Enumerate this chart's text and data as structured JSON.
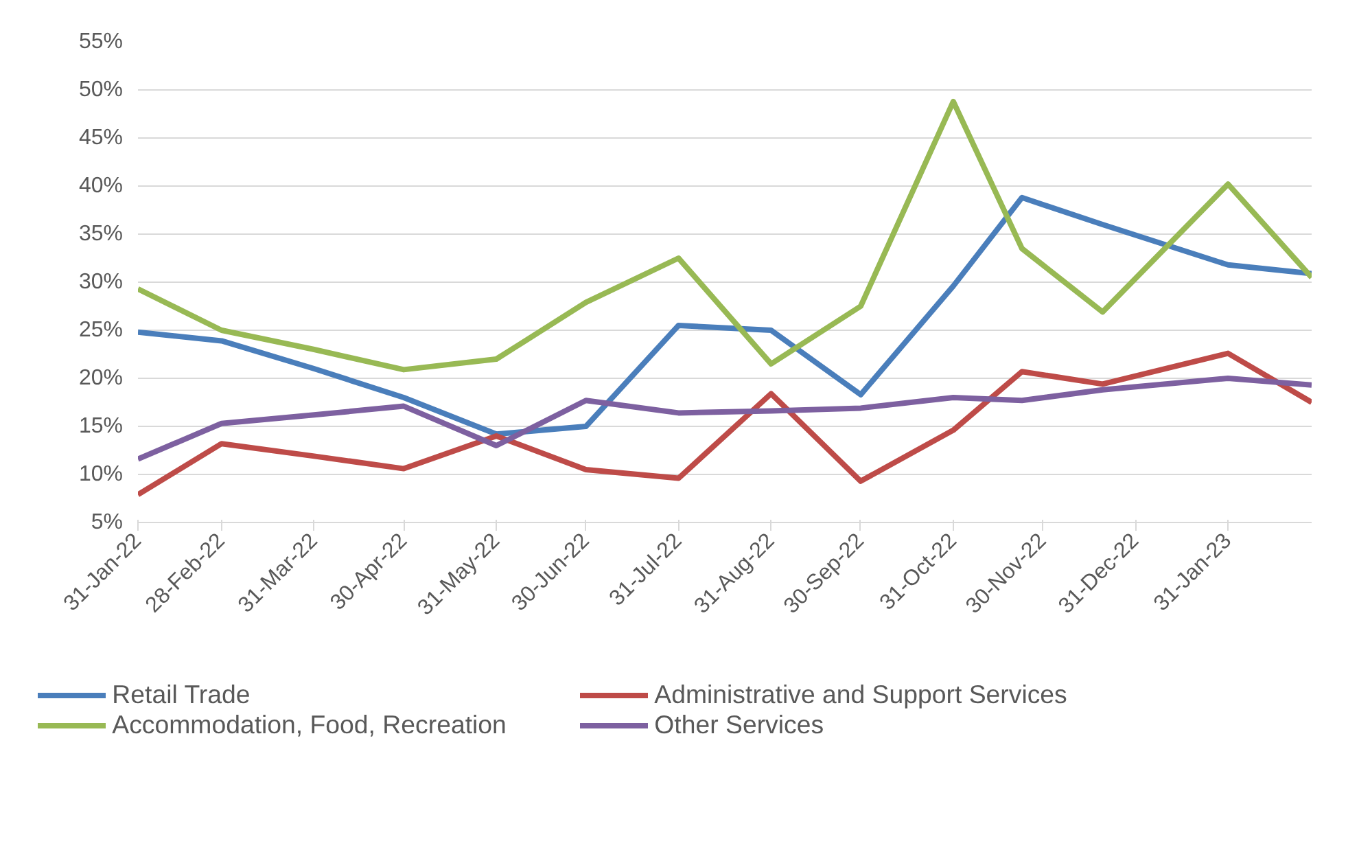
{
  "chart_data": {
    "type": "line",
    "x": [
      "2022-01-31",
      "2022-02-28",
      "2022-03-31",
      "2022-04-30",
      "2022-05-31",
      "2022-06-30",
      "2022-07-31",
      "2022-08-31",
      "2022-09-30",
      "2022-10-31",
      "2022-11-23",
      "2022-12-20",
      "2023-01-31",
      "2023-02-28"
    ],
    "series": [
      {
        "name": "Retail Trade",
        "color": "#4a7ebb",
        "values": [
          24.8,
          23.9,
          21,
          18,
          14.2,
          15,
          25.5,
          25,
          18.3,
          29.6,
          38.8,
          36,
          31.8,
          30.9
        ]
      },
      {
        "name": "Administrative and Support Services",
        "color": "#be4b48",
        "values": [
          7.9,
          13.2,
          11.9,
          10.6,
          14,
          10.5,
          9.6,
          18.4,
          9.3,
          14.6,
          20.7,
          19.4,
          22.6,
          17.5
        ]
      },
      {
        "name": "Accommodation, Food, Recreation",
        "color": "#98b954",
        "values": [
          29.3,
          25,
          23,
          20.9,
          22,
          27.9,
          32.5,
          21.5,
          27.5,
          48.8,
          33.5,
          26.9,
          40.2,
          30.5
        ]
      },
      {
        "name": "Other Services",
        "color": "#7d60a0",
        "values": [
          11.6,
          15.3,
          16.2,
          17.1,
          13,
          17.7,
          16.4,
          16.6,
          16.9,
          18,
          17.7,
          18.8,
          20,
          19.3
        ]
      }
    ],
    "xlim": [
      "2022-01-31",
      "2023-02-28"
    ],
    "xticks": [
      {
        "value": "2022-01-31",
        "label": "31-Jan-22"
      },
      {
        "value": "2022-02-28",
        "label": "28-Feb-22"
      },
      {
        "value": "2022-03-31",
        "label": "31-Mar-22"
      },
      {
        "value": "2022-04-30",
        "label": "30-Apr-22"
      },
      {
        "value": "2022-05-31",
        "label": "31-May-22"
      },
      {
        "value": "2022-06-30",
        "label": "30-Jun-22"
      },
      {
        "value": "2022-07-31",
        "label": "31-Jul-22"
      },
      {
        "value": "2022-08-31",
        "label": "31-Aug-22"
      },
      {
        "value": "2022-09-30",
        "label": "30-Sep-22"
      },
      {
        "value": "2022-10-31",
        "label": "31-Oct-22"
      },
      {
        "value": "2022-11-30",
        "label": "30-Nov-22"
      },
      {
        "value": "2022-12-31",
        "label": "31-Dec-22"
      },
      {
        "value": "2023-01-31",
        "label": "31-Jan-23"
      }
    ],
    "ylim": [
      5,
      55
    ],
    "yticks": [
      {
        "value": 5,
        "label": "5%"
      },
      {
        "value": 10,
        "label": "10%"
      },
      {
        "value": 15,
        "label": "15%"
      },
      {
        "value": 20,
        "label": "20%"
      },
      {
        "value": 25,
        "label": "25%"
      },
      {
        "value": 30,
        "label": "30%"
      },
      {
        "value": 35,
        "label": "35%"
      },
      {
        "value": 40,
        "label": "40%"
      },
      {
        "value": 45,
        "label": "45%"
      },
      {
        "value": 50,
        "label": "50%"
      },
      {
        "value": 55,
        "label": "55%"
      }
    ],
    "grid": "y",
    "legend": "bottom",
    "marker": "none",
    "line_style": "solid"
  }
}
